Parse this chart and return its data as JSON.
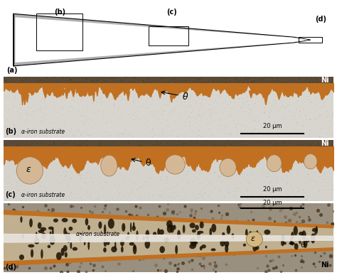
{
  "fig_width": 4.74,
  "fig_height": 3.87,
  "dpi": 100,
  "bg_color": "#ffffff",
  "panel_a": {
    "wedge_fill": "#c8c8c8",
    "wedge_inner": "#ffffff",
    "label_a": "(a)",
    "label_b": "(b)",
    "label_c": "(c)",
    "label_d": "(d)"
  },
  "panel_b": {
    "label": "(b)",
    "sub_label": "α-iron substrate",
    "scale_bar": "20 μm",
    "ni_label": "Ni",
    "theta_label": "θ",
    "bg_color": "#d8d5ce",
    "ni_color": "#706050",
    "orange_color": "#b8621a",
    "drip_color": "#b8621a"
  },
  "panel_c": {
    "label": "(c)",
    "sub_label": "α-iron substrate",
    "scale_bar": "20 μm",
    "ni_label": "Ni",
    "theta_label": "θ",
    "epsilon_label": "ε",
    "bg_color": "#d5d2cc",
    "ni_color": "#706050",
    "orange_color": "#b8621a",
    "epsilon_color": "#d4b896"
  },
  "panel_d": {
    "label": "(d)",
    "sub_label": "α-iron substrate",
    "scale_bar": "20 μm",
    "ni_label": "Ni",
    "theta_label": "θ",
    "epsilon_label": "ε",
    "bg_color": "#a89880",
    "orange_color": "#b8621a",
    "grain_color": "#2a1800",
    "substrate_color": "#d0c8b8",
    "white_streak": "#e8e8e8"
  }
}
